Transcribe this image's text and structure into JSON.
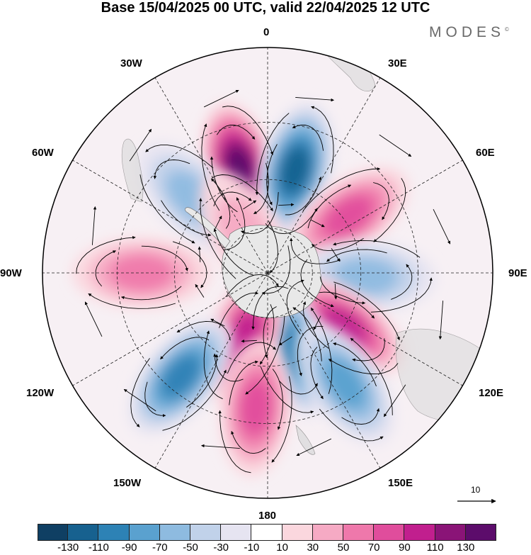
{
  "title": "Base 15/04/2025 00 UTC, valid 22/04/2025 12 UTC",
  "brand": "MODES",
  "brand_mark": "©",
  "lon_labels": {
    "deg0": "0",
    "e30": "30E",
    "e60": "60E",
    "e90": "90E",
    "e120": "120E",
    "e150": "150E",
    "deg180": "180",
    "w150": "150W",
    "w120": "120W",
    "w90": "90W",
    "w60": "60W",
    "w30": "30W"
  },
  "reference_vector_value": "10",
  "colorbar": {
    "colors": [
      "#0f3f63",
      "#17618f",
      "#2d82b5",
      "#5aa1cf",
      "#8ebbe0",
      "#c1d2ea",
      "#e6e4f1",
      "#ffffff",
      "#fbd7de",
      "#f6aac4",
      "#ef78ab",
      "#e04d9c",
      "#c11f8e",
      "#8a1477",
      "#5c0c6b"
    ],
    "tick_labels": [
      "-130",
      "-110",
      "-90",
      "-70",
      "-50",
      "-30",
      "-10",
      "10",
      "30",
      "50",
      "70",
      "90",
      "110",
      "130"
    ]
  },
  "map": {
    "projection": "south polar stereographic",
    "anomaly_centres": [
      {
        "sign": "positive",
        "value": 130,
        "lon": -15,
        "lat": -45
      },
      {
        "sign": "negative",
        "value": -110,
        "lon": 15,
        "lat": -45
      },
      {
        "sign": "positive",
        "value": 70,
        "lon": 55,
        "lat": -48
      },
      {
        "sign": "negative",
        "value": -50,
        "lon": -45,
        "lat": -45
      },
      {
        "sign": "positive",
        "value": 30,
        "lon": -30,
        "lat": -70
      },
      {
        "sign": "positive",
        "value": 50,
        "lon": -90,
        "lat": -38
      },
      {
        "sign": "negative",
        "value": -50,
        "lon": 92,
        "lat": -48
      },
      {
        "sign": "positive",
        "value": 90,
        "lon": 125,
        "lat": -50
      },
      {
        "sign": "negative",
        "value": -90,
        "lon": 162,
        "lat": -55
      },
      {
        "sign": "positive",
        "value": 90,
        "lon": -160,
        "lat": -60
      },
      {
        "sign": "positive",
        "value": 70,
        "lon": -175,
        "lat": -35
      },
      {
        "sign": "negative",
        "value": -90,
        "lon": -140,
        "lat": -35
      },
      {
        "sign": "negative",
        "value": -70,
        "lon": 145,
        "lat": -35
      }
    ]
  }
}
